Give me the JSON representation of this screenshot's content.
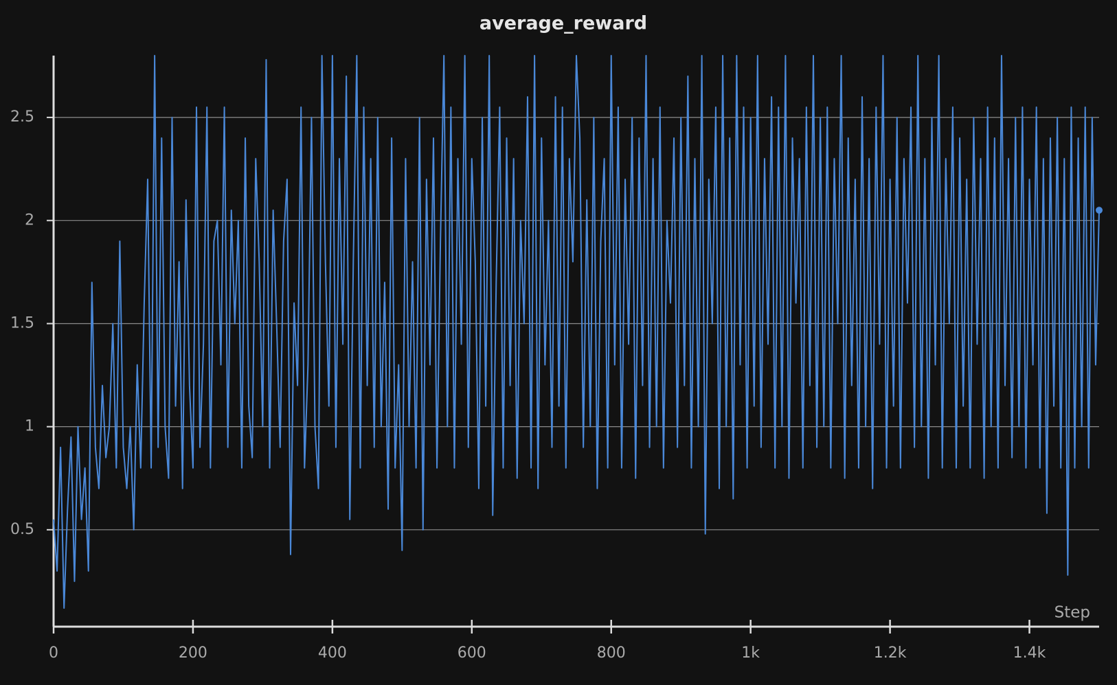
{
  "chart_data": {
    "type": "line",
    "title": "average_reward",
    "x_label": "Step",
    "color": "#4a88d8",
    "grid": true,
    "x": [
      0,
      5,
      10,
      15,
      20,
      25,
      30,
      35,
      40,
      45,
      50,
      55,
      60,
      65,
      70,
      75,
      80,
      85,
      90,
      95,
      100,
      105,
      110,
      115,
      120,
      125,
      130,
      135,
      140,
      145,
      150,
      155,
      160,
      165,
      170,
      175,
      180,
      185,
      190,
      195,
      200,
      205,
      210,
      215,
      220,
      225,
      230,
      235,
      240,
      245,
      250,
      255,
      260,
      265,
      270,
      275,
      280,
      285,
      290,
      295,
      300,
      305,
      310,
      315,
      320,
      325,
      330,
      335,
      340,
      345,
      350,
      355,
      360,
      365,
      370,
      375,
      380,
      385,
      390,
      395,
      400,
      405,
      410,
      415,
      420,
      425,
      430,
      435,
      440,
      445,
      450,
      455,
      460,
      465,
      470,
      475,
      480,
      485,
      490,
      495,
      500,
      505,
      510,
      515,
      520,
      525,
      530,
      535,
      540,
      545,
      550,
      555,
      560,
      565,
      570,
      575,
      580,
      585,
      590,
      595,
      600,
      605,
      610,
      615,
      620,
      625,
      630,
      635,
      640,
      645,
      650,
      655,
      660,
      665,
      670,
      675,
      680,
      685,
      690,
      695,
      700,
      705,
      710,
      715,
      720,
      725,
      730,
      735,
      740,
      745,
      750,
      755,
      760,
      765,
      770,
      775,
      780,
      785,
      790,
      795,
      800,
      805,
      810,
      815,
      820,
      825,
      830,
      835,
      840,
      845,
      850,
      855,
      860,
      865,
      870,
      875,
      880,
      885,
      890,
      895,
      900,
      905,
      910,
      915,
      920,
      925,
      930,
      935,
      940,
      945,
      950,
      955,
      960,
      965,
      970,
      975,
      980,
      985,
      990,
      995,
      1000,
      1005,
      1010,
      1015,
      1020,
      1025,
      1030,
      1035,
      1040,
      1045,
      1050,
      1055,
      1060,
      1065,
      1070,
      1075,
      1080,
      1085,
      1090,
      1095,
      1100,
      1105,
      1110,
      1115,
      1120,
      1125,
      1130,
      1135,
      1140,
      1145,
      1150,
      1155,
      1160,
      1165,
      1170,
      1175,
      1180,
      1185,
      1190,
      1195,
      1200,
      1205,
      1210,
      1215,
      1220,
      1225,
      1230,
      1235,
      1240,
      1245,
      1250,
      1255,
      1260,
      1265,
      1270,
      1275,
      1280,
      1285,
      1290,
      1295,
      1300,
      1305,
      1310,
      1315,
      1320,
      1325,
      1330,
      1335,
      1340,
      1345,
      1350,
      1355,
      1360,
      1365,
      1370,
      1375,
      1380,
      1385,
      1390,
      1395,
      1400,
      1405,
      1410,
      1415,
      1420,
      1425,
      1430,
      1435,
      1440,
      1445,
      1450,
      1455,
      1460,
      1465,
      1470,
      1475,
      1480,
      1485,
      1490,
      1495,
      1500
    ],
    "values": [
      0.55,
      0.3,
      0.9,
      0.12,
      0.6,
      0.95,
      0.25,
      1.0,
      0.55,
      0.8,
      0.3,
      1.7,
      0.9,
      0.7,
      1.2,
      0.85,
      1.0,
      1.5,
      0.8,
      1.9,
      0.9,
      0.7,
      1.0,
      0.5,
      1.3,
      0.8,
      1.6,
      2.2,
      0.8,
      2.8,
      0.9,
      2.4,
      1.0,
      0.75,
      2.5,
      1.1,
      1.8,
      0.7,
      2.1,
      1.2,
      0.8,
      2.55,
      0.9,
      1.4,
      2.55,
      0.8,
      1.9,
      2.0,
      1.3,
      2.55,
      0.9,
      2.05,
      1.5,
      2.0,
      0.8,
      2.4,
      1.1,
      0.85,
      2.3,
      1.8,
      1.0,
      2.78,
      0.8,
      2.05,
      1.5,
      0.9,
      1.9,
      2.2,
      0.38,
      1.6,
      1.2,
      2.55,
      0.8,
      1.3,
      2.5,
      1.0,
      0.7,
      2.8,
      1.8,
      1.1,
      2.8,
      0.9,
      2.3,
      1.4,
      2.7,
      0.55,
      1.8,
      2.8,
      0.8,
      2.55,
      1.2,
      2.3,
      0.9,
      2.5,
      1.0,
      1.7,
      0.6,
      2.4,
      0.8,
      1.3,
      0.4,
      2.3,
      1.0,
      1.8,
      0.8,
      2.5,
      0.5,
      2.2,
      1.3,
      2.4,
      0.8,
      1.9,
      2.8,
      1.0,
      2.55,
      0.8,
      2.3,
      1.4,
      2.8,
      0.9,
      2.3,
      1.8,
      0.7,
      2.5,
      1.1,
      2.8,
      0.57,
      1.7,
      2.55,
      0.8,
      2.4,
      1.2,
      2.3,
      0.75,
      2.0,
      1.5,
      2.6,
      0.8,
      2.8,
      0.7,
      2.4,
      1.3,
      2.0,
      0.9,
      2.6,
      1.1,
      2.55,
      0.8,
      2.3,
      1.8,
      2.8,
      2.4,
      0.9,
      2.1,
      1.0,
      2.5,
      0.7,
      1.9,
      2.3,
      0.8,
      2.8,
      1.3,
      2.55,
      0.8,
      2.2,
      1.4,
      2.5,
      0.75,
      2.4,
      1.2,
      2.8,
      0.9,
      2.3,
      1.0,
      2.55,
      0.8,
      2.0,
      1.6,
      2.4,
      0.9,
      2.5,
      1.2,
      2.7,
      0.8,
      2.3,
      1.0,
      2.8,
      0.48,
      2.2,
      1.5,
      2.55,
      0.7,
      2.8,
      1.0,
      2.4,
      0.65,
      2.8,
      1.3,
      2.55,
      0.8,
      2.5,
      1.1,
      2.8,
      0.9,
      2.3,
      1.4,
      2.6,
      0.8,
      2.55,
      1.0,
      2.8,
      0.75,
      2.4,
      1.6,
      2.3,
      0.8,
      2.55,
      1.2,
      2.8,
      0.9,
      2.5,
      1.0,
      2.55,
      0.8,
      2.3,
      1.5,
      2.8,
      0.75,
      2.4,
      1.2,
      2.2,
      0.8,
      2.6,
      1.0,
      2.3,
      0.7,
      2.55,
      1.4,
      2.8,
      0.8,
      2.2,
      1.1,
      2.5,
      0.8,
      2.3,
      1.6,
      2.55,
      0.9,
      2.8,
      1.0,
      2.3,
      0.75,
      2.5,
      1.3,
      2.8,
      0.8,
      2.3,
      1.5,
      2.55,
      0.8,
      2.4,
      1.1,
      2.2,
      0.8,
      2.5,
      1.4,
      2.3,
      0.75,
      2.55,
      1.0,
      2.4,
      0.8,
      2.8,
      1.2,
      2.3,
      0.85,
      2.5,
      1.0,
      2.55,
      0.8,
      2.2,
      1.3,
      2.55,
      0.8,
      2.3,
      0.58,
      2.4,
      1.1,
      2.5,
      0.8,
      2.3,
      0.28,
      2.55,
      0.8,
      2.4,
      1.0,
      2.55,
      0.8,
      2.5,
      1.3,
      2.05
    ],
    "xlim": [
      0,
      1500
    ],
    "xticks": [
      0,
      200,
      400,
      600,
      800,
      {
        "value": 1000,
        "label": "1k"
      },
      {
        "value": 1200,
        "label": "1.2k"
      },
      {
        "value": 1400,
        "label": "1.4k"
      }
    ],
    "ylim": [
      0.03,
      2.8
    ],
    "yticks": [
      0.5,
      1,
      1.5,
      2,
      2.5
    ]
  }
}
